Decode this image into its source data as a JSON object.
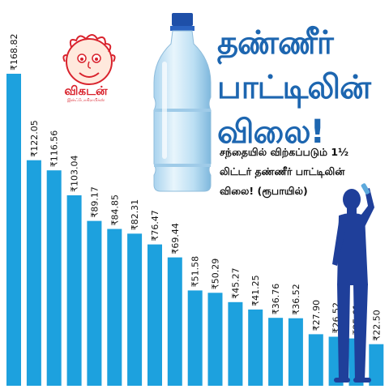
{
  "logo": {
    "brand": "விகடன்",
    "sub": "இன்ஃபோகிராபிக்ஸ்"
  },
  "title_lines": [
    "தண்ணீர்",
    "பாட்டிலின்",
    "விலை!"
  ],
  "subtitle_lines": [
    "சந்தையில் விற்கப்படும் 1½",
    "லிட்டர் தண்ணீர் பாட்டிலின்",
    "விலை! (ரூபாயில்)"
  ],
  "colors": {
    "bar": "#1da1de",
    "title": "#1d66b0",
    "logo": "#d9232d",
    "person": "#1f3f9a"
  },
  "chart_data": {
    "type": "bar",
    "currency_prefix": "₹",
    "values": [
      168.82,
      122.05,
      116.56,
      103.04,
      89.17,
      84.85,
      82.31,
      76.47,
      69.44,
      51.58,
      50.29,
      45.27,
      41.25,
      36.76,
      36.52,
      27.9,
      26.52,
      25.61,
      22.5
    ],
    "value_labels": [
      "168.82",
      "122.05",
      "116.56",
      "103.04",
      "89.17",
      "84.85",
      "82.31",
      "76.47",
      "69.44",
      "51.58",
      "50.29",
      "45.27",
      "41.25",
      "36.76",
      "36.52",
      "27.90",
      "26.52",
      "25.61",
      "22.50"
    ],
    "ylim": [
      0,
      168.82
    ],
    "grid": false,
    "legend": "none"
  }
}
